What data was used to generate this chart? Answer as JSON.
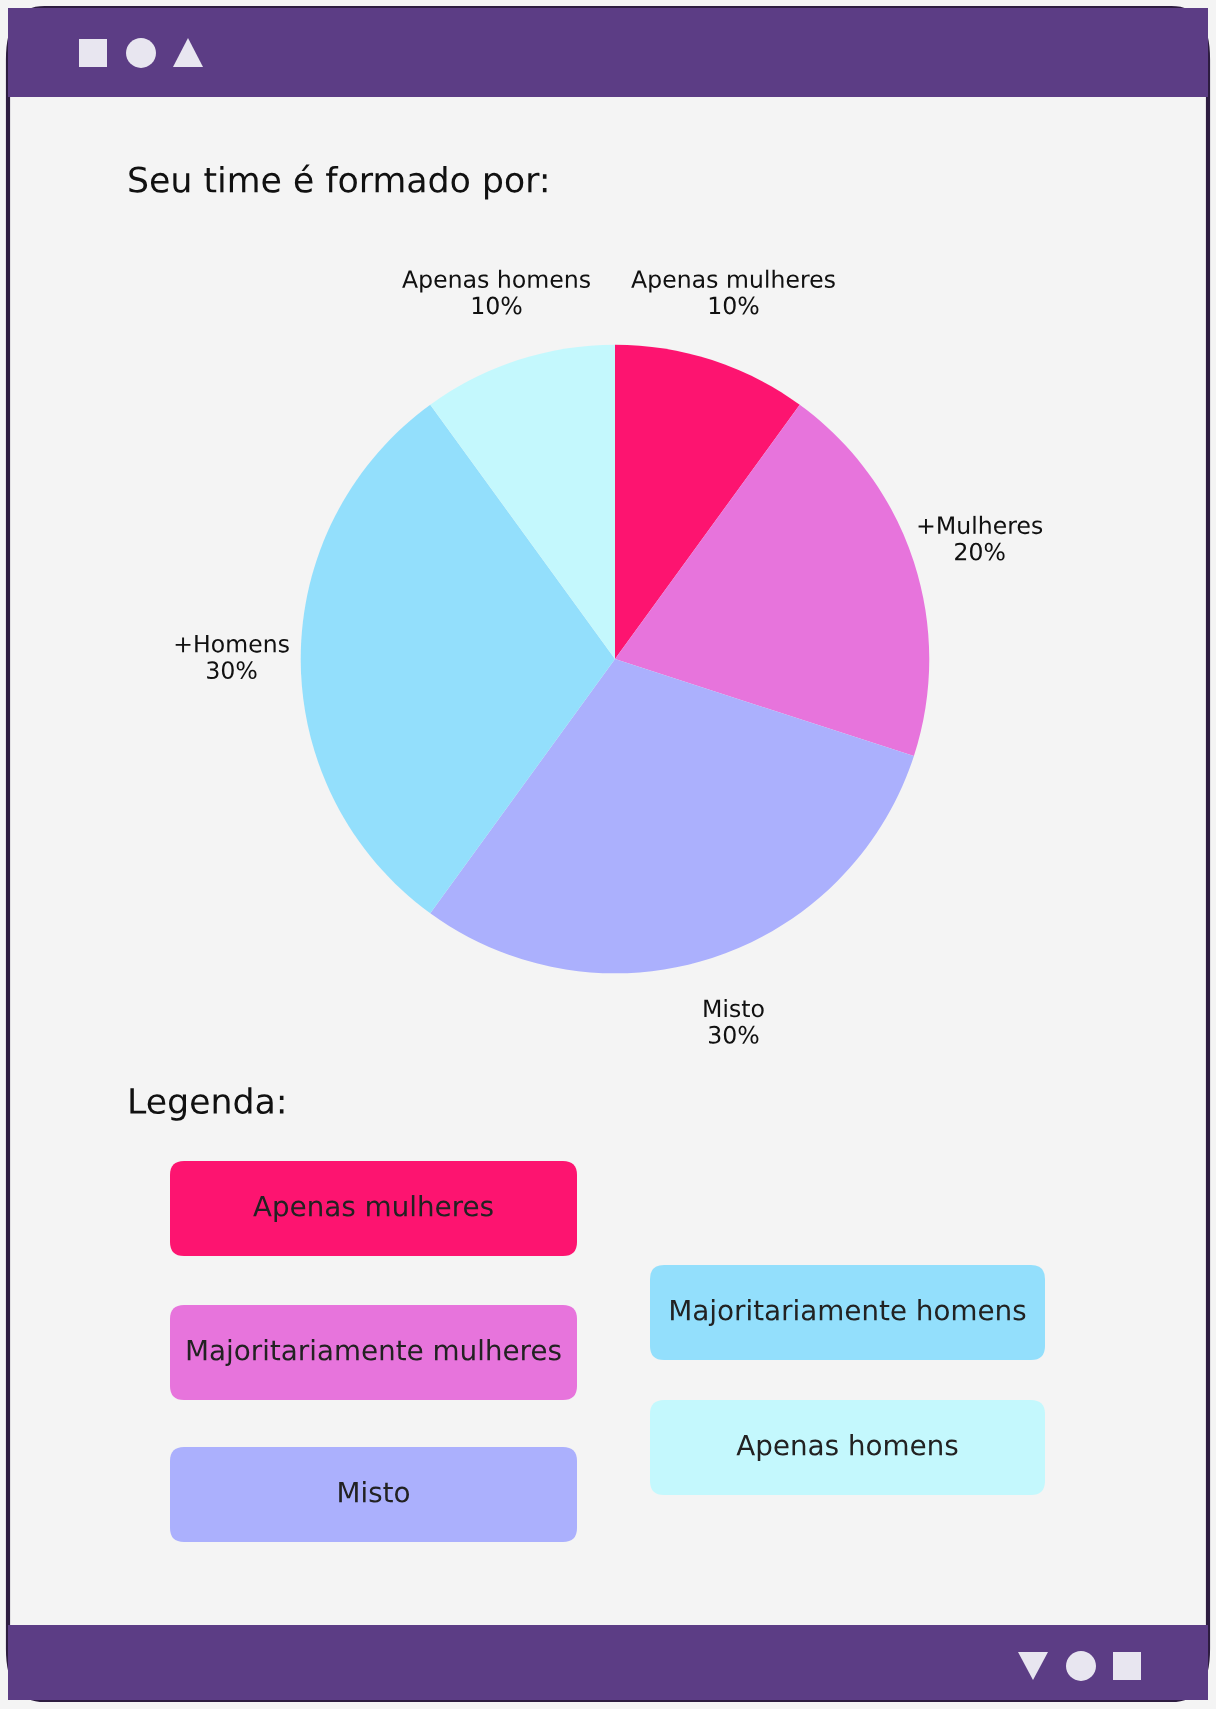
{
  "chart_data": {
    "type": "pie",
    "title": "Seu time é formado por:",
    "legend_title": "Legenda:",
    "categories": [
      "Apenas mulheres",
      "+Mulheres",
      "Misto",
      "+Homens",
      "Apenas homens"
    ],
    "values": [
      10,
      20,
      30,
      30,
      10
    ],
    "value_labels": [
      "10%",
      "20%",
      "30%",
      "30%",
      "10%"
    ],
    "colors": [
      "#fd1470",
      "#e774dc",
      "#abb0fd",
      "#93dffc",
      "#c4f8fd"
    ],
    "annotations": [
      "Apenas mulheres",
      "Majoritariamente mulheres",
      "Misto",
      "Majoritariamente homens",
      "Apenas homens"
    ]
  }
}
